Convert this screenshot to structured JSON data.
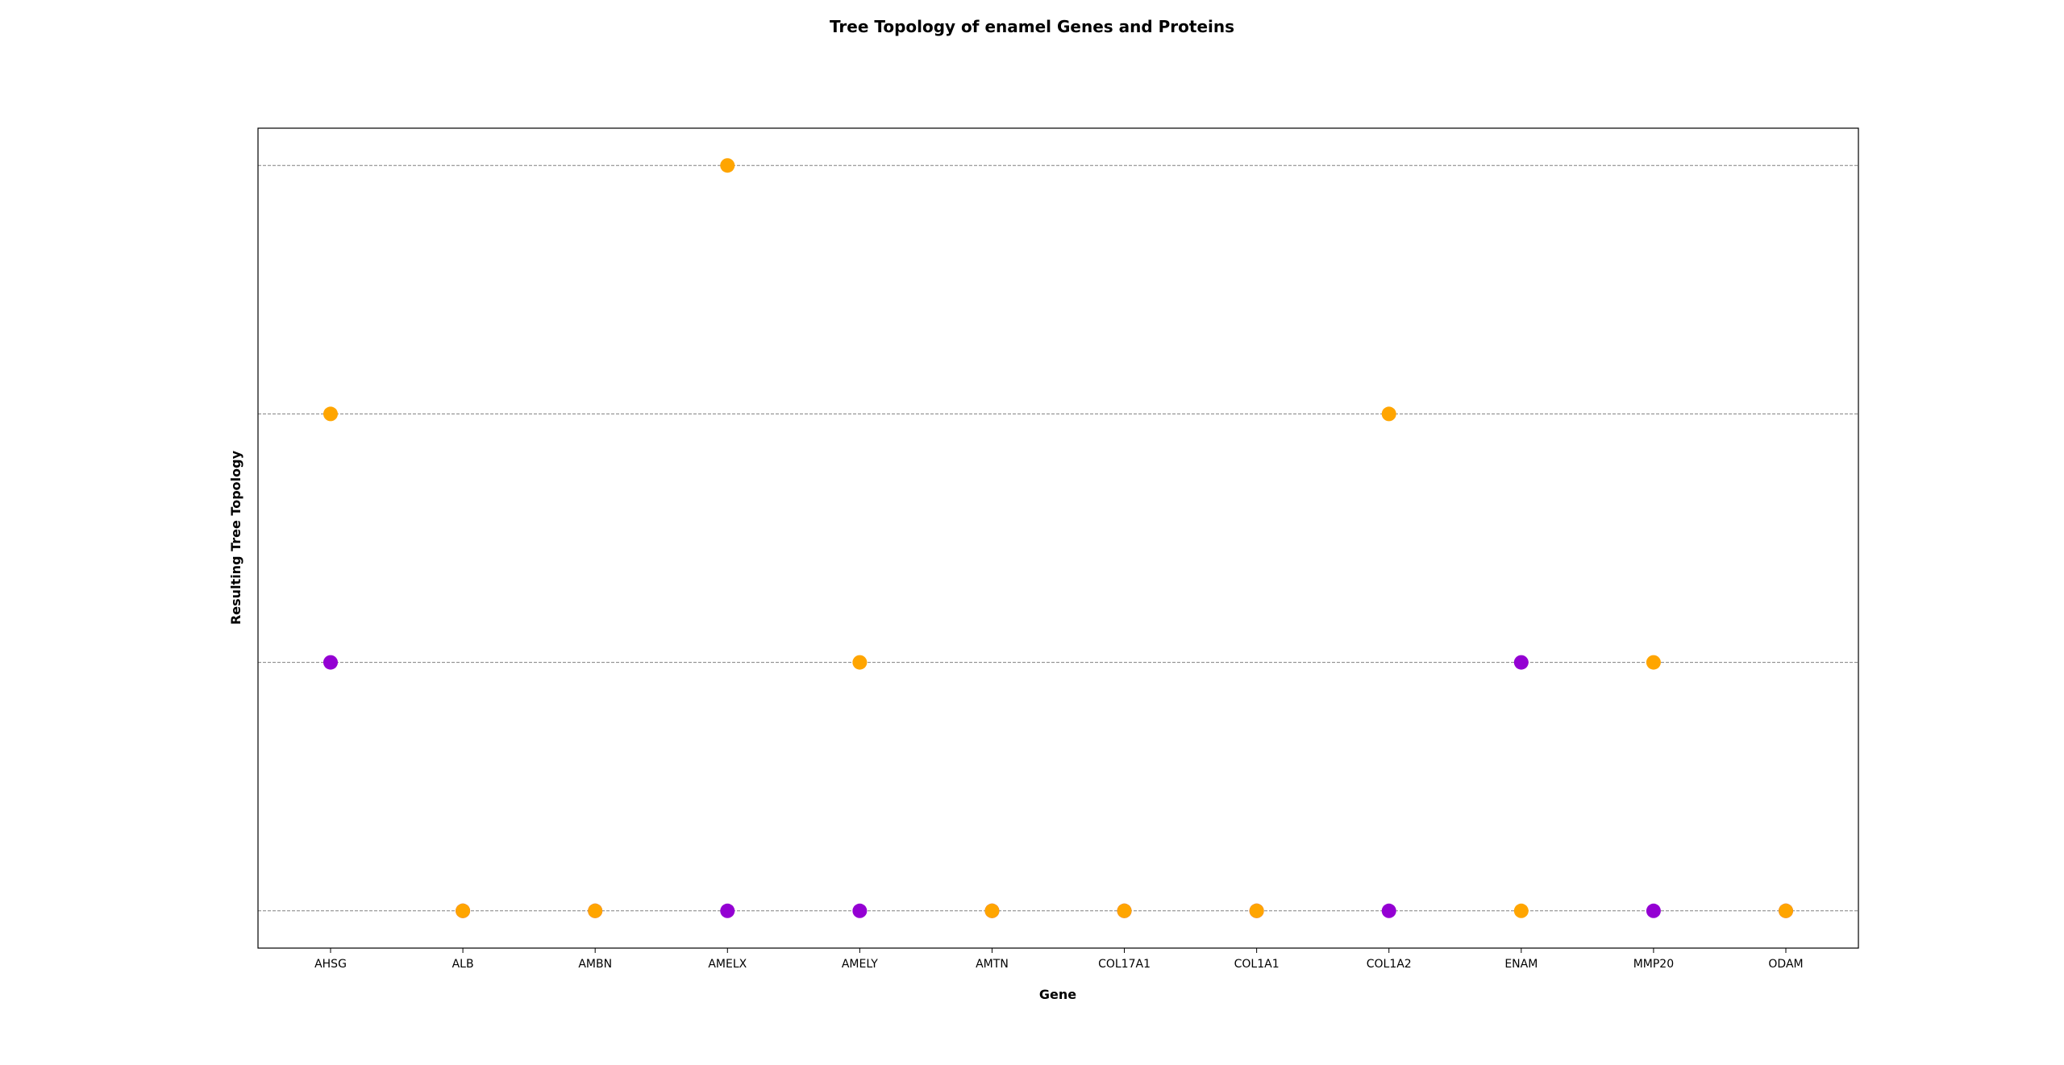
{
  "chart_data": {
    "type": "scatter",
    "title": "Tree Topology of enamel Genes and Proteins",
    "xlabel": "Gene",
    "ylabel": "Resulting Tree Topology",
    "categories": [
      "AHSG",
      "ALB",
      "AMBN",
      "AMELX",
      "AMELY",
      "AMTN",
      "COL17A1",
      "COL1A1",
      "COL1A2",
      "ENAM",
      "MMP20",
      "ODAM"
    ],
    "y_levels": 4,
    "ylim": [
      -0.15,
      3.15
    ],
    "grid": "horizontal dashed lines at each topology level",
    "y_tick_labels_shown": false,
    "legend": "none",
    "series": [
      {
        "color": "#9400D3",
        "points": [
          {
            "x": "AHSG",
            "y": 1
          },
          {
            "x": "ALB",
            "y": 0
          },
          {
            "x": "AMBN",
            "y": 0
          },
          {
            "x": "AMELX",
            "y": 0
          },
          {
            "x": "AMELY",
            "y": 0
          },
          {
            "x": "AMTN",
            "y": 0
          },
          {
            "x": "COL17A1",
            "y": 0
          },
          {
            "x": "COL1A1",
            "y": 0
          },
          {
            "x": "COL1A2",
            "y": 0
          },
          {
            "x": "ENAM",
            "y": 1
          },
          {
            "x": "MMP20",
            "y": 0
          },
          {
            "x": "ODAM",
            "y": 0
          }
        ]
      },
      {
        "color": "#FFA500",
        "points": [
          {
            "x": "AHSG",
            "y": 2
          },
          {
            "x": "ALB",
            "y": 0
          },
          {
            "x": "AMBN",
            "y": 0
          },
          {
            "x": "AMELX",
            "y": 3
          },
          {
            "x": "AMELY",
            "y": 1
          },
          {
            "x": "AMTN",
            "y": 0
          },
          {
            "x": "COL17A1",
            "y": 0
          },
          {
            "x": "COL1A1",
            "y": 0
          },
          {
            "x": "COL1A2",
            "y": 2
          },
          {
            "x": "ENAM",
            "y": 0
          },
          {
            "x": "MMP20",
            "y": 1
          },
          {
            "x": "ODAM",
            "y": 0
          }
        ]
      }
    ]
  }
}
